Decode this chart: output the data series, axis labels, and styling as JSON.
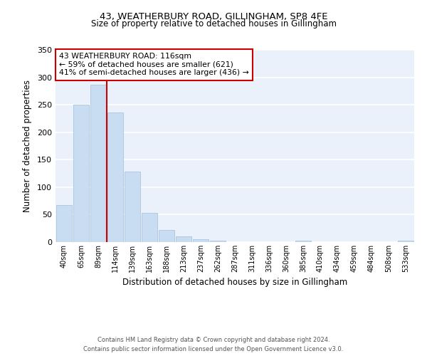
{
  "title": "43, WEATHERBURY ROAD, GILLINGHAM, SP8 4FE",
  "subtitle": "Size of property relative to detached houses in Gillingham",
  "xlabel": "Distribution of detached houses by size in Gillingham",
  "ylabel": "Number of detached properties",
  "bar_color": "#c8ddf2",
  "bar_edgecolor": "#aac4e0",
  "background_color": "#eaf1fa",
  "grid_color": "#ffffff",
  "categories": [
    "40sqm",
    "65sqm",
    "89sqm",
    "114sqm",
    "139sqm",
    "163sqm",
    "188sqm",
    "213sqm",
    "237sqm",
    "262sqm",
    "287sqm",
    "311sqm",
    "336sqm",
    "360sqm",
    "385sqm",
    "410sqm",
    "434sqm",
    "459sqm",
    "484sqm",
    "508sqm",
    "533sqm"
  ],
  "values": [
    68,
    250,
    286,
    236,
    128,
    53,
    22,
    10,
    5,
    3,
    0,
    0,
    0,
    0,
    3,
    0,
    0,
    0,
    0,
    0,
    3
  ],
  "ylim": [
    0,
    350
  ],
  "yticks": [
    0,
    50,
    100,
    150,
    200,
    250,
    300,
    350
  ],
  "property_line_x": 3,
  "property_line_label": "43 WEATHERBURY ROAD: 116sqm",
  "annotation_line1": "← 59% of detached houses are smaller (621)",
  "annotation_line2": "41% of semi-detached houses are larger (436) →",
  "annotation_box_color": "#ffffff",
  "annotation_box_edgecolor": "#cc0000",
  "vline_color": "#cc0000",
  "footer_line1": "Contains HM Land Registry data © Crown copyright and database right 2024.",
  "footer_line2": "Contains public sector information licensed under the Open Government Licence v3.0."
}
